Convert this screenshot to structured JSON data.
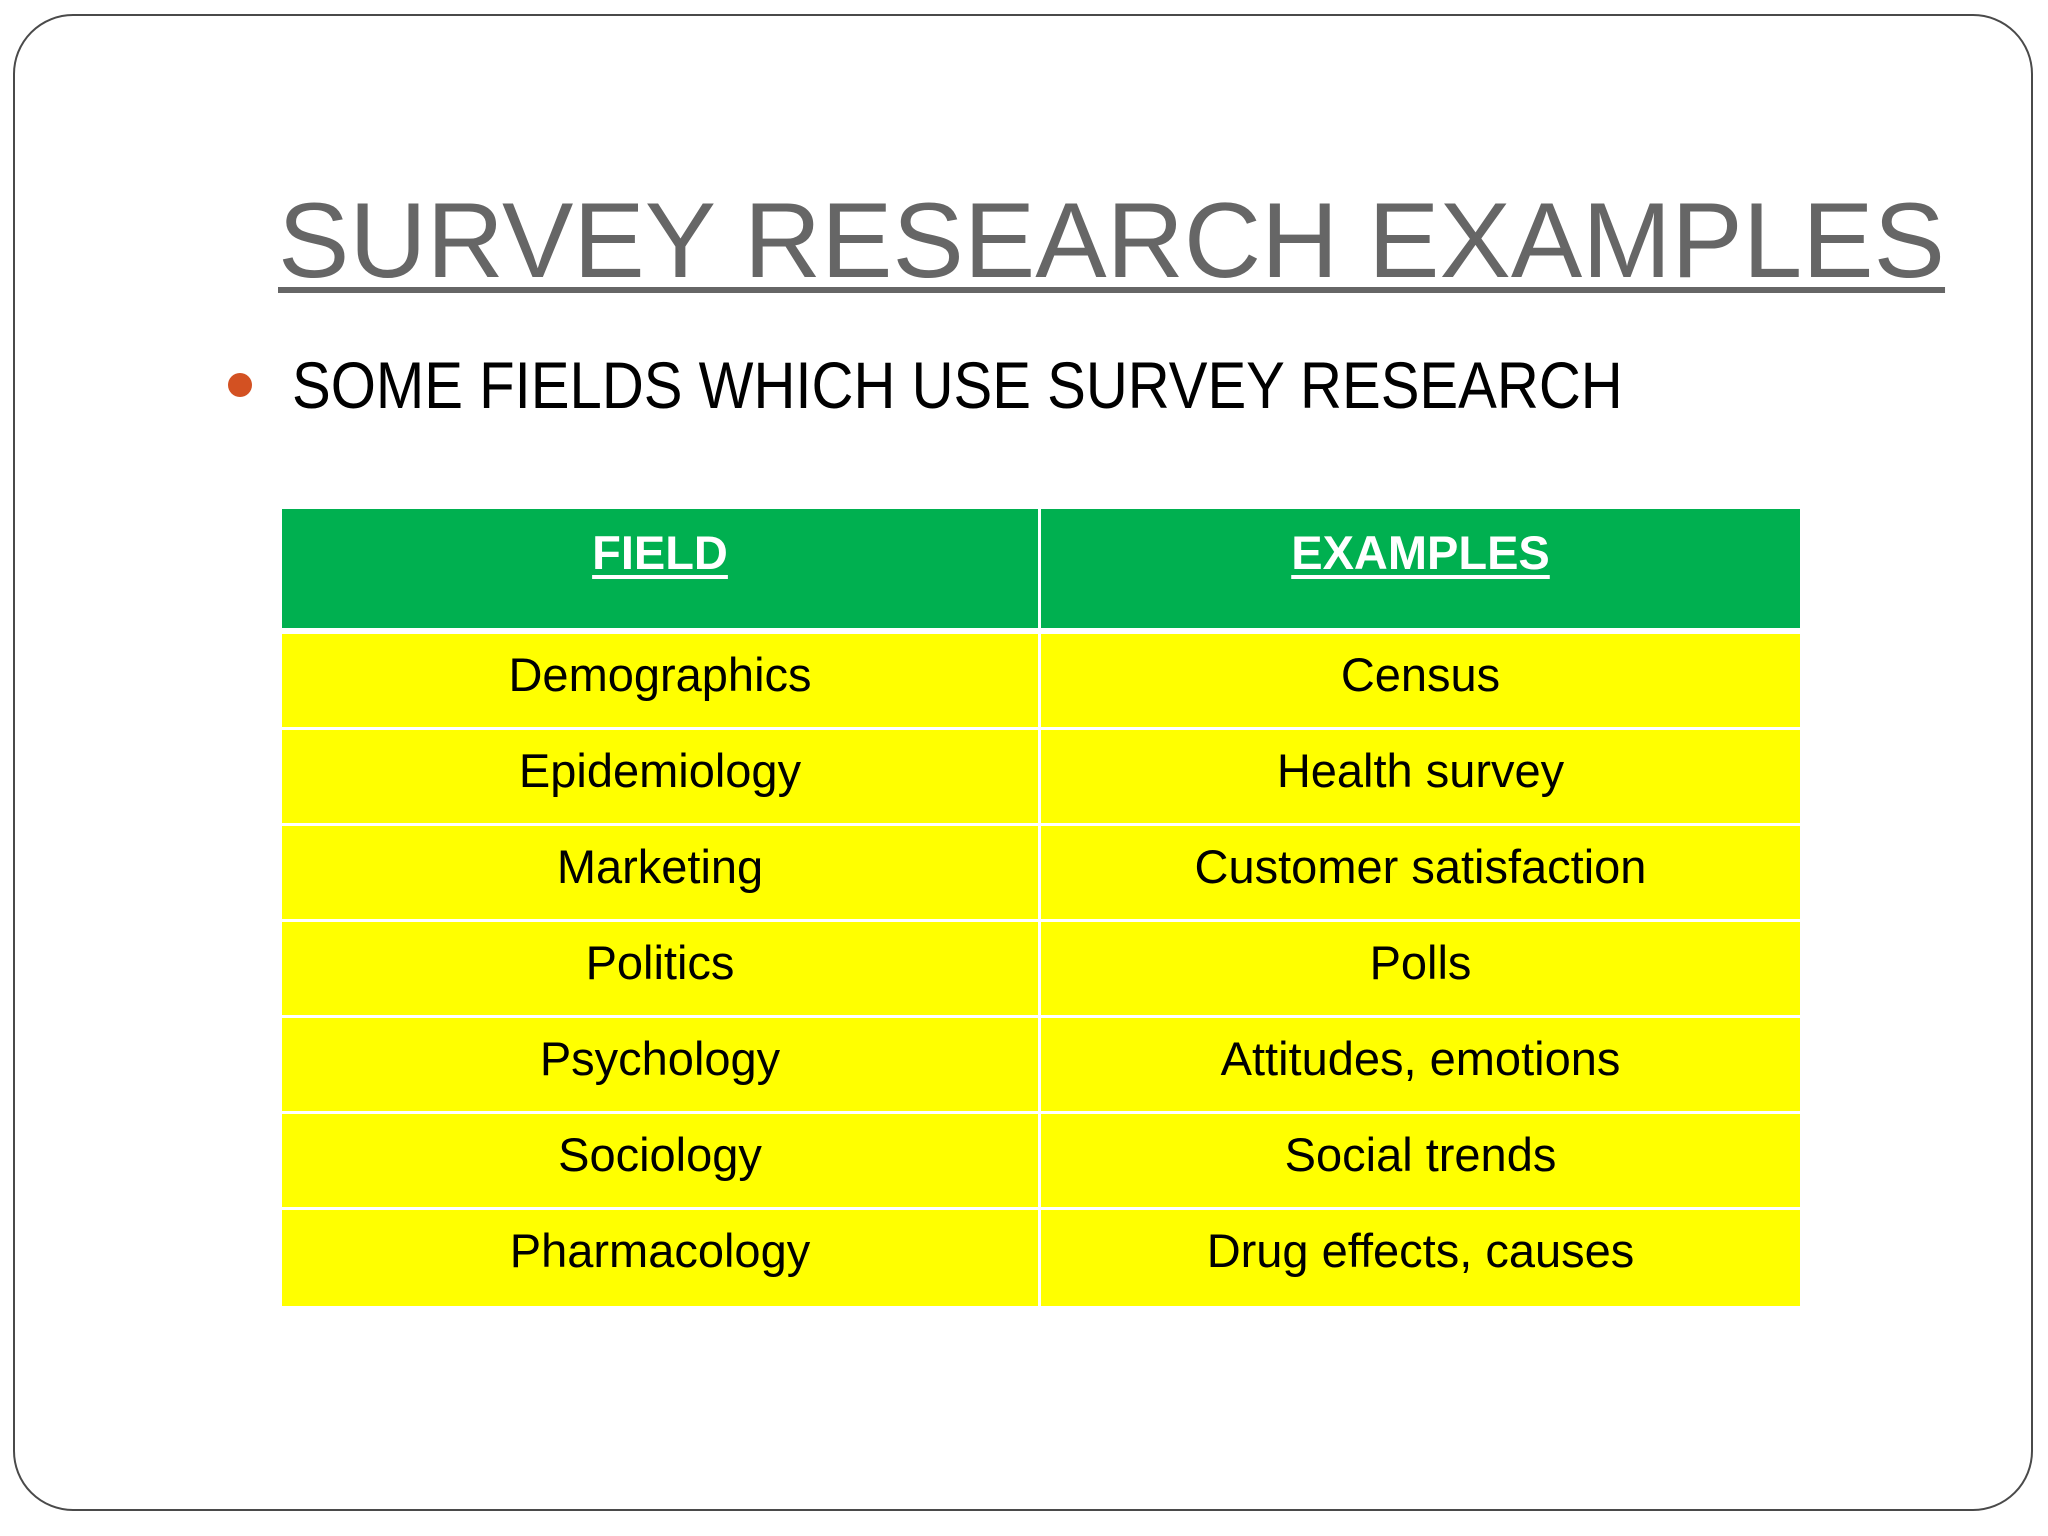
{
  "slide": {
    "title": "SURVEY RESEARCH EXAMPLES",
    "bullet": "SOME FIELDS WHICH USE SURVEY RESEARCH",
    "bullet_color": "#d35122",
    "table": {
      "headers": [
        "FIELD",
        "EXAMPLES"
      ],
      "header_color": "#00b050",
      "row_color": "#ffff00",
      "rows": [
        [
          "Demographics",
          "Census"
        ],
        [
          "Epidemiology",
          "Health survey"
        ],
        [
          "Marketing",
          "Customer satisfaction"
        ],
        [
          "Politics",
          "Polls"
        ],
        [
          "Psychology",
          "Attitudes, emotions"
        ],
        [
          "Sociology",
          "Social trends"
        ],
        [
          "Pharmacology",
          "Drug effects, causes"
        ]
      ]
    }
  }
}
